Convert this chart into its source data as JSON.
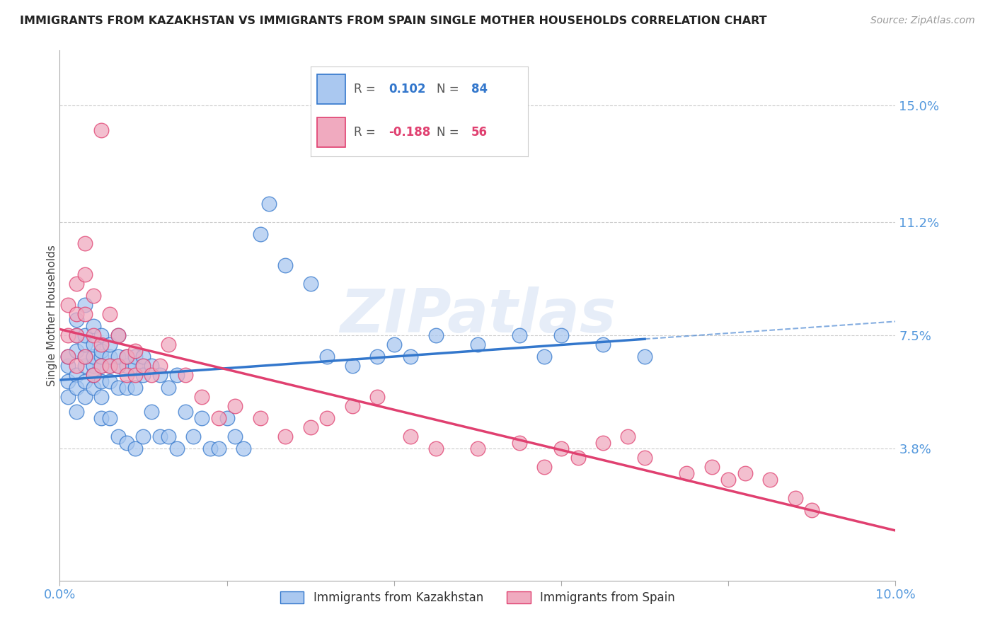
{
  "title": "IMMIGRANTS FROM KAZAKHSTAN VS IMMIGRANTS FROM SPAIN SINGLE MOTHER HOUSEHOLDS CORRELATION CHART",
  "source": "Source: ZipAtlas.com",
  "ylabel": "Single Mother Households",
  "y_tick_labels": [
    "15.0%",
    "11.2%",
    "7.5%",
    "3.8%"
  ],
  "y_tick_values": [
    0.15,
    0.112,
    0.075,
    0.038
  ],
  "xlim": [
    0.0,
    0.1
  ],
  "ylim": [
    -0.005,
    0.168
  ],
  "r_kaz": 0.102,
  "n_kaz": 84,
  "r_spain": -0.188,
  "n_spain": 56,
  "color_kaz": "#aac8f0",
  "color_spain": "#f0aabf",
  "line_color_kaz": "#3377cc",
  "line_color_spain": "#e04070",
  "watermark": "ZIPatlas",
  "background_color": "#ffffff",
  "axis_label_color": "#5599dd",
  "grid_color": "#cccccc",
  "kaz_x": [
    0.001,
    0.001,
    0.001,
    0.001,
    0.002,
    0.002,
    0.002,
    0.002,
    0.002,
    0.002,
    0.003,
    0.003,
    0.003,
    0.003,
    0.003,
    0.003,
    0.003,
    0.004,
    0.004,
    0.004,
    0.004,
    0.004,
    0.004,
    0.005,
    0.005,
    0.005,
    0.005,
    0.005,
    0.005,
    0.005,
    0.006,
    0.006,
    0.006,
    0.006,
    0.006,
    0.007,
    0.007,
    0.007,
    0.007,
    0.007,
    0.008,
    0.008,
    0.008,
    0.008,
    0.009,
    0.009,
    0.009,
    0.009,
    0.01,
    0.01,
    0.01,
    0.01,
    0.011,
    0.011,
    0.012,
    0.012,
    0.013,
    0.013,
    0.014,
    0.014,
    0.015,
    0.016,
    0.017,
    0.018,
    0.019,
    0.02,
    0.021,
    0.022,
    0.024,
    0.025,
    0.027,
    0.03,
    0.032,
    0.035,
    0.038,
    0.04,
    0.042,
    0.045,
    0.05,
    0.055,
    0.058,
    0.06,
    0.065,
    0.07
  ],
  "kaz_y": [
    0.065,
    0.06,
    0.068,
    0.055,
    0.07,
    0.075,
    0.062,
    0.058,
    0.08,
    0.05,
    0.065,
    0.068,
    0.072,
    0.06,
    0.055,
    0.075,
    0.085,
    0.065,
    0.068,
    0.072,
    0.058,
    0.062,
    0.078,
    0.065,
    0.068,
    0.075,
    0.06,
    0.055,
    0.07,
    0.048,
    0.065,
    0.068,
    0.072,
    0.06,
    0.048,
    0.065,
    0.068,
    0.058,
    0.075,
    0.042,
    0.065,
    0.068,
    0.058,
    0.04,
    0.065,
    0.068,
    0.058,
    0.038,
    0.065,
    0.068,
    0.062,
    0.042,
    0.065,
    0.05,
    0.062,
    0.042,
    0.058,
    0.042,
    0.062,
    0.038,
    0.05,
    0.042,
    0.048,
    0.038,
    0.038,
    0.048,
    0.042,
    0.038,
    0.108,
    0.118,
    0.098,
    0.092,
    0.068,
    0.065,
    0.068,
    0.072,
    0.068,
    0.075,
    0.072,
    0.075,
    0.068,
    0.075,
    0.072,
    0.068
  ],
  "spain_x": [
    0.001,
    0.001,
    0.001,
    0.002,
    0.002,
    0.002,
    0.002,
    0.003,
    0.003,
    0.003,
    0.003,
    0.004,
    0.004,
    0.004,
    0.005,
    0.005,
    0.005,
    0.006,
    0.006,
    0.007,
    0.007,
    0.008,
    0.008,
    0.009,
    0.009,
    0.01,
    0.011,
    0.012,
    0.013,
    0.015,
    0.017,
    0.019,
    0.021,
    0.024,
    0.027,
    0.03,
    0.032,
    0.035,
    0.038,
    0.042,
    0.045,
    0.05,
    0.055,
    0.058,
    0.06,
    0.062,
    0.065,
    0.068,
    0.07,
    0.075,
    0.078,
    0.08,
    0.082,
    0.085,
    0.088,
    0.09
  ],
  "spain_y": [
    0.068,
    0.075,
    0.085,
    0.065,
    0.075,
    0.082,
    0.092,
    0.068,
    0.082,
    0.095,
    0.105,
    0.062,
    0.075,
    0.088,
    0.065,
    0.072,
    0.142,
    0.065,
    0.082,
    0.065,
    0.075,
    0.062,
    0.068,
    0.062,
    0.07,
    0.065,
    0.062,
    0.065,
    0.072,
    0.062,
    0.055,
    0.048,
    0.052,
    0.048,
    0.042,
    0.045,
    0.048,
    0.052,
    0.055,
    0.042,
    0.038,
    0.038,
    0.04,
    0.032,
    0.038,
    0.035,
    0.04,
    0.042,
    0.035,
    0.03,
    0.032,
    0.028,
    0.03,
    0.028,
    0.022,
    0.018
  ]
}
